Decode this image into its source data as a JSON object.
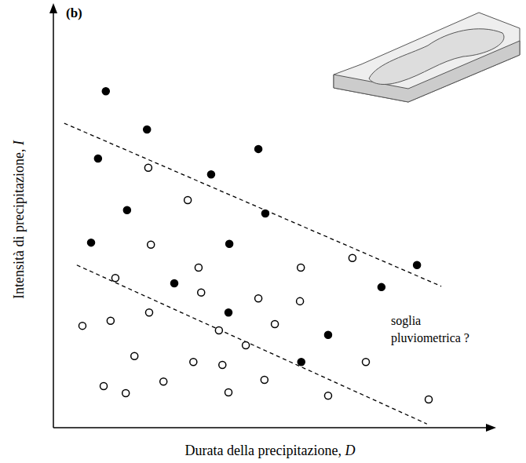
{
  "chart_data": {
    "type": "scatter",
    "title": "(b)",
    "xlabel": "Durata della precipitazione, D",
    "ylabel": "Intensità di precipitazione, I",
    "xlim": [
      0,
      100
    ],
    "ylim": [
      0,
      100
    ],
    "tick_labels": false,
    "grid": false,
    "series": [
      {
        "marker": "filled",
        "color": "#000000",
        "x": [
          12.1,
          21.6,
          10.3,
          47.3,
          36.4,
          17.0,
          48.9,
          8.7,
          40.6,
          83.9,
          27.9,
          75.7,
          40.4,
          63.4,
          57.2
        ],
        "values": [
          80.9,
          71.7,
          64.7,
          67.0,
          60.9,
          52.3,
          51.5,
          44.5,
          44.2,
          39.1,
          34.7,
          33.8,
          27.7,
          22.3,
          15.8
        ]
      },
      {
        "marker": "hollow",
        "color": "#000000",
        "x": [
          21.9,
          31.0,
          22.5,
          69.0,
          14.3,
          33.5,
          57.1,
          34.1,
          47.3,
          56.9,
          22.1,
          13.2,
          6.7,
          51.1,
          38.2,
          44.4,
          18.7,
          32.3,
          39.0,
          72.1,
          11.6,
          16.7,
          25.4,
          40.4,
          48.7,
          63.4,
          86.6
        ],
        "values": [
          62.5,
          54.7,
          44.0,
          40.8,
          36.0,
          38.5,
          38.5,
          32.5,
          31.1,
          30.4,
          27.7,
          25.7,
          24.5,
          24.9,
          23.4,
          19.8,
          17.2,
          15.8,
          15.1,
          15.8,
          10.0,
          8.3,
          11.1,
          8.5,
          11.5,
          7.7,
          6.8
        ]
      }
    ],
    "lines": [
      {
        "x": [
          2.5,
          89.5
        ],
        "values": [
          73.2,
          34.0
        ],
        "line_style": "dashed",
        "color": "#000000"
      },
      {
        "x": [
          5.4,
          86.2
        ],
        "values": [
          39.1,
          0.9
        ],
        "line_style": "dashed",
        "color": "#000000"
      }
    ],
    "annotations": [
      {
        "text": "soglia pluviometrica ?"
      }
    ]
  }
}
